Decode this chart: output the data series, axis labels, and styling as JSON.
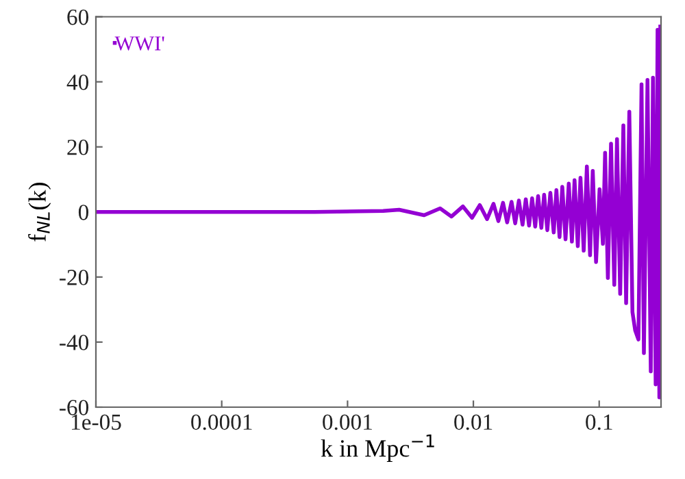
{
  "chart_data": {
    "type": "line",
    "xlabel": "k in Mpc$^{−1}$",
    "ylabel": "f$_{NL}$(k)",
    "log": "x",
    "legend": "top left",
    "grid": false,
    "xlim": [
      1e-05,
      0.31
    ],
    "xticks": [
      {
        "value": 1e-05,
        "label": "1e-05"
      },
      0.0001,
      0.001,
      0.01,
      0.1
    ],
    "ylim": [
      -60,
      60
    ],
    "yticks": [
      -60,
      -40,
      -20,
      0,
      20,
      40,
      60
    ],
    "series": [
      {
        "name": "WWI'",
        "color": "#9400d3",
        "x": [
          1e-05,
          0.00055,
          0.00192,
          0.00257,
          0.00406,
          0.00544,
          0.0067,
          0.00826,
          0.00976,
          0.01125,
          0.01285,
          0.01445,
          0.0158,
          0.0172,
          0.01855,
          0.0201,
          0.0215,
          0.023,
          0.0246,
          0.0261,
          0.0277,
          0.0293,
          0.031,
          0.0327,
          0.0347,
          0.0365,
          0.0387,
          0.0409,
          0.0435,
          0.0457,
          0.0484,
          0.0509,
          0.054,
          0.0573,
          0.0607,
          0.0637,
          0.0676,
          0.071,
          0.0753,
          0.0798,
          0.0846,
          0.0889,
          0.0944,
          0.1007,
          0.107,
          0.1114,
          0.1172,
          0.1242,
          0.1318,
          0.1385,
          0.1468,
          0.1556,
          0.1637,
          0.1735,
          0.1838,
          0.1932,
          0.205,
          0.217,
          0.2266,
          0.242,
          0.257,
          0.2675,
          0.281,
          0.291,
          0.3006,
          0.306
        ],
        "values": [
          0,
          0,
          0.3,
          0.7,
          -1.0,
          1.1,
          -1.4,
          1.7,
          -1.8,
          2.1,
          -2.2,
          2.5,
          -2.8,
          2.8,
          -3.2,
          3.1,
          -3.5,
          3.5,
          -3.9,
          3.9,
          -4.2,
          4.2,
          -4.5,
          4.9,
          -4.9,
          5.3,
          -5.6,
          5.9,
          -6.3,
          6.7,
          -7.7,
          7.7,
          -8.4,
          8.7,
          -9.1,
          9.8,
          -10.5,
          10.5,
          -11.9,
          14,
          -13.3,
          12.6,
          -15.4,
          7,
          -9.8,
          18.2,
          -20.3,
          21,
          -22.4,
          22.4,
          -25.2,
          26.6,
          -28,
          30.8,
          -30.8,
          -36.4,
          -39.2,
          39.2,
          -43.4,
          40.6,
          -49,
          41.3,
          -53,
          56,
          -57,
          57
        ]
      }
    ]
  }
}
